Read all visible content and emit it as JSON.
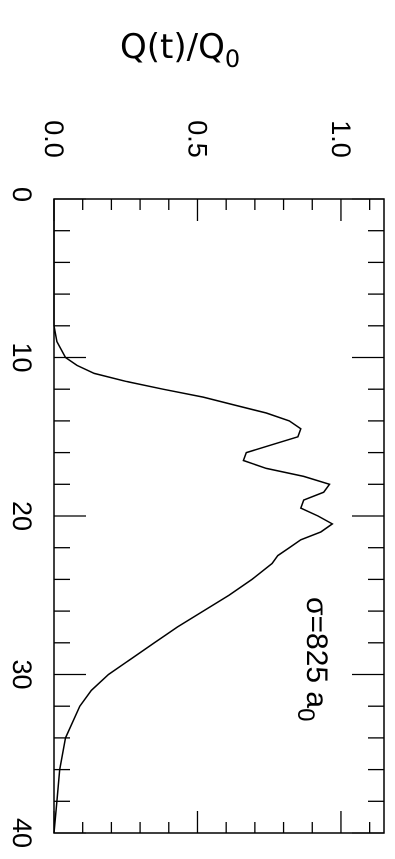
{
  "chart_data": {
    "type": "line",
    "orientation": "rotated-90-clockwise",
    "title": "",
    "ylabel": "Q(t)/Q",
    "ylabel_subscript": "0",
    "xlabel": "",
    "annotation": "σ=825 a",
    "annotation_subscript": "0",
    "xlim": [
      0,
      40
    ],
    "ylim": [
      0,
      1.15
    ],
    "x_ticks": [
      "0",
      "10",
      "20",
      "30",
      "40"
    ],
    "y_ticks": [
      "0.0",
      "0.5",
      "1.0"
    ],
    "grid": false,
    "series": [
      {
        "x": [
          0,
          8,
          9,
          10,
          10.5,
          11,
          11.5,
          12,
          12.5,
          13,
          13.5,
          14,
          14.5,
          15,
          15.5,
          16,
          16.5,
          17,
          17.5,
          18,
          18.5,
          19,
          19.5,
          20,
          20.5,
          21,
          21.5,
          22,
          22.5,
          23,
          24,
          25,
          26,
          27,
          28,
          29,
          30,
          31,
          32,
          34,
          36,
          38,
          40
        ],
        "y": [
          0.0,
          0.0,
          0.01,
          0.04,
          0.08,
          0.14,
          0.25,
          0.38,
          0.52,
          0.63,
          0.74,
          0.82,
          0.86,
          0.85,
          0.76,
          0.67,
          0.66,
          0.74,
          0.87,
          0.96,
          0.94,
          0.87,
          0.86,
          0.92,
          0.97,
          0.93,
          0.86,
          0.82,
          0.78,
          0.76,
          0.69,
          0.61,
          0.52,
          0.43,
          0.35,
          0.27,
          0.19,
          0.13,
          0.09,
          0.04,
          0.02,
          0.01,
          0.0
        ]
      }
    ]
  }
}
